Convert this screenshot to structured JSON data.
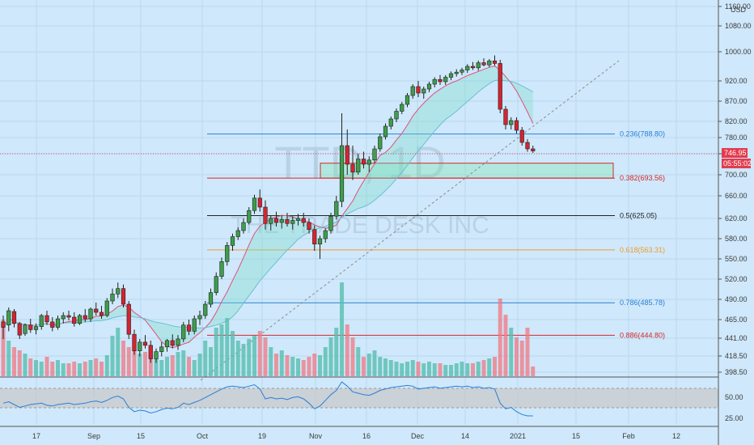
{
  "chart_data": {
    "type": "candlestick",
    "ticker_watermark": "TTD, 1D",
    "name_watermark": "THE TRADE DESK INC",
    "currency": "USD",
    "price_axis_ticks": [
      1160,
      1080,
      1000,
      920,
      870,
      820,
      780,
      740,
      700,
      660,
      620,
      580,
      550,
      520,
      490,
      465,
      441,
      418.5,
      398.5
    ],
    "price_axis_ticks_labels": [
      "1160.00",
      "1080.00",
      "1000.00",
      "920.00",
      "870.00",
      "820.00",
      "780.00",
      "740.00",
      "700.00",
      "660.00",
      "620.00",
      "580.00",
      "550.00",
      "520.00",
      "490.00",
      "465.00",
      "441.00",
      "418.50",
      "398.50"
    ],
    "time_axis_labels": [
      "17",
      "Sep",
      "15",
      "Oct",
      "19",
      "Nov",
      "16",
      "Dec",
      "14",
      "2021",
      "15",
      "Feb",
      "12"
    ],
    "last_price": "746.95",
    "countdown": "05:55:02",
    "fib_levels": [
      {
        "ratio": "0.236",
        "label": "0.236(788.80)",
        "price": 788.8,
        "color": "#2a7fd4"
      },
      {
        "ratio": "0.382",
        "label": "0.382(693.56)",
        "price": 693.56,
        "color": "#d62828"
      },
      {
        "ratio": "0.5",
        "label": "0.5(625.05)",
        "price": 625.05,
        "color": "#222222"
      },
      {
        "ratio": "0.618",
        "label": "0.618(563.31)",
        "price": 563.31,
        "color": "#f29a2e"
      },
      {
        "ratio": "0.786",
        "label": "0.786(485.78)",
        "price": 485.78,
        "color": "#2a7fd4"
      },
      {
        "ratio": "0.886",
        "label": "0.886(444.80)",
        "price": 444.8,
        "color": "#d62828"
      }
    ],
    "support_zone": {
      "low": 693.56,
      "high": 722
    },
    "candles": [
      [
        462,
        470,
        440,
        455
      ],
      [
        458,
        480,
        450,
        476
      ],
      [
        475,
        478,
        455,
        460
      ],
      [
        460,
        462,
        440,
        445
      ],
      [
        447,
        460,
        444,
        458
      ],
      [
        458,
        466,
        448,
        452
      ],
      [
        452,
        460,
        446,
        456
      ],
      [
        456,
        472,
        452,
        470
      ],
      [
        470,
        476,
        458,
        462
      ],
      [
        462,
        468,
        450,
        455
      ],
      [
        455,
        470,
        452,
        466
      ],
      [
        466,
        474,
        460,
        470
      ],
      [
        470,
        476,
        464,
        468
      ],
      [
        468,
        474,
        456,
        460
      ],
      [
        460,
        472,
        458,
        470
      ],
      [
        470,
        478,
        462,
        466
      ],
      [
        466,
        480,
        462,
        478
      ],
      [
        478,
        486,
        470,
        474
      ],
      [
        474,
        482,
        466,
        470
      ],
      [
        470,
        492,
        468,
        488
      ],
      [
        488,
        506,
        484,
        498
      ],
      [
        498,
        515,
        492,
        506
      ],
      [
        506,
        512,
        480,
        484
      ],
      [
        484,
        488,
        440,
        446
      ],
      [
        446,
        452,
        420,
        425
      ],
      [
        425,
        440,
        418,
        436
      ],
      [
        436,
        445,
        428,
        432
      ],
      [
        432,
        438,
        410,
        415
      ],
      [
        415,
        428,
        410,
        424
      ],
      [
        424,
        436,
        418,
        430
      ],
      [
        430,
        440,
        424,
        438
      ],
      [
        438,
        446,
        428,
        432
      ],
      [
        432,
        445,
        426,
        440
      ],
      [
        440,
        462,
        436,
        458
      ],
      [
        458,
        465,
        445,
        450
      ],
      [
        450,
        470,
        446,
        466
      ],
      [
        466,
        476,
        458,
        470
      ],
      [
        470,
        488,
        466,
        484
      ],
      [
        484,
        506,
        480,
        500
      ],
      [
        500,
        530,
        496,
        524
      ],
      [
        524,
        552,
        520,
        546
      ],
      [
        546,
        575,
        540,
        570
      ],
      [
        570,
        590,
        562,
        584
      ],
      [
        584,
        602,
        578,
        596
      ],
      [
        596,
        620,
        590,
        612
      ],
      [
        612,
        640,
        608,
        634
      ],
      [
        634,
        662,
        628,
        656
      ],
      [
        656,
        672,
        632,
        640
      ],
      [
        640,
        652,
        598,
        610
      ],
      [
        610,
        625,
        596,
        620
      ],
      [
        620,
        632,
        604,
        612
      ],
      [
        612,
        626,
        600,
        618
      ],
      [
        618,
        630,
        604,
        610
      ],
      [
        610,
        624,
        598,
        616
      ],
      [
        616,
        628,
        606,
        620
      ],
      [
        620,
        630,
        604,
        612
      ],
      [
        612,
        620,
        590,
        598
      ],
      [
        598,
        606,
        562,
        572
      ],
      [
        572,
        586,
        550,
        580
      ],
      [
        580,
        600,
        574,
        596
      ],
      [
        596,
        630,
        590,
        624
      ],
      [
        624,
        660,
        618,
        650
      ],
      [
        650,
        840,
        640,
        760
      ],
      [
        760,
        800,
        700,
        720
      ],
      [
        720,
        760,
        690,
        705
      ],
      [
        705,
        740,
        700,
        730
      ],
      [
        730,
        745,
        712,
        720
      ],
      [
        720,
        735,
        705,
        728
      ],
      [
        728,
        760,
        722,
        752
      ],
      [
        752,
        790,
        745,
        782
      ],
      [
        782,
        815,
        775,
        808
      ],
      [
        808,
        832,
        800,
        826
      ],
      [
        826,
        852,
        818,
        845
      ],
      [
        845,
        868,
        838,
        862
      ],
      [
        862,
        890,
        855,
        884
      ],
      [
        884,
        912,
        876,
        906
      ],
      [
        906,
        920,
        880,
        890
      ],
      [
        890,
        906,
        876,
        900
      ],
      [
        900,
        918,
        892,
        912
      ],
      [
        912,
        930,
        904,
        924
      ],
      [
        924,
        936,
        910,
        918
      ],
      [
        918,
        936,
        910,
        930
      ],
      [
        930,
        946,
        922,
        940
      ],
      [
        940,
        952,
        932,
        944
      ],
      [
        944,
        956,
        936,
        950
      ],
      [
        950,
        966,
        942,
        960
      ],
      [
        960,
        972,
        950,
        956
      ],
      [
        956,
        976,
        948,
        970
      ],
      [
        970,
        982,
        960,
        964
      ],
      [
        964,
        980,
        958,
        975
      ],
      [
        975,
        990,
        962,
        968
      ],
      [
        968,
        978,
        840,
        850
      ],
      [
        850,
        858,
        800,
        812
      ],
      [
        812,
        830,
        800,
        822
      ],
      [
        822,
        830,
        790,
        798
      ],
      [
        798,
        806,
        760,
        768
      ],
      [
        768,
        776,
        745,
        752
      ],
      [
        752,
        760,
        742,
        746.95
      ]
    ],
    "volume": [
      35,
      22,
      18,
      16,
      14,
      11,
      10,
      9,
      12,
      9,
      10,
      8,
      8,
      9,
      8,
      9,
      10,
      11,
      9,
      13,
      25,
      30,
      22,
      18,
      16,
      14,
      15,
      13,
      11,
      10,
      12,
      13,
      15,
      16,
      12,
      10,
      14,
      22,
      18,
      30,
      32,
      36,
      28,
      22,
      20,
      23,
      25,
      28,
      24,
      18,
      14,
      16,
      13,
      12,
      11,
      10,
      12,
      14,
      13,
      18,
      24,
      30,
      58,
      32,
      24,
      18,
      12,
      14,
      16,
      12,
      11,
      10,
      9,
      8,
      9,
      10,
      9,
      8,
      9,
      8,
      8,
      7,
      7,
      8,
      9,
      8,
      8,
      9,
      10,
      11,
      12,
      48,
      38,
      30,
      24,
      22,
      30,
      6
    ],
    "rsi": [
      52,
      54,
      50,
      46,
      48,
      50,
      51,
      52,
      49,
      48,
      50,
      51,
      52,
      50,
      51,
      52,
      54,
      55,
      53,
      56,
      60,
      62,
      58,
      46,
      40,
      42,
      41,
      38,
      40,
      43,
      45,
      44,
      46,
      52,
      50,
      53,
      56,
      60,
      64,
      68,
      72,
      75,
      76,
      75,
      74,
      76,
      78,
      72,
      58,
      60,
      58,
      59,
      57,
      60,
      61,
      58,
      52,
      44,
      48,
      56,
      64,
      70,
      82,
      76,
      68,
      66,
      64,
      63,
      66,
      70,
      72,
      74,
      75,
      76,
      77,
      76,
      72,
      73,
      74,
      75,
      73,
      74,
      75,
      76,
      75,
      76,
      74,
      75,
      73,
      74,
      72,
      52,
      44,
      46,
      40,
      36,
      34,
      34
    ],
    "rsi_ticks": [
      "50.00",
      "25.00"
    ]
  }
}
